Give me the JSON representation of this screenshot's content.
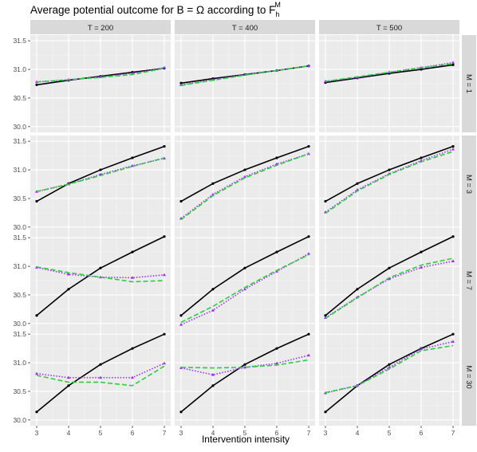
{
  "title": {
    "main": "Average potential outcome for B = Ω according to F",
    "sub": "h",
    "sup": "M"
  },
  "chart_data": {
    "type": "line",
    "xlabel": "Intervention intensity",
    "x": [
      3,
      4,
      5,
      6,
      7
    ],
    "xticks": [
      "3",
      "4",
      "5",
      "6",
      "7"
    ],
    "ylim": [
      29.9,
      31.6
    ],
    "yticks": [
      30.0,
      30.5,
      31.0,
      31.5
    ],
    "ytick_labels": [
      "30.0",
      "30.5",
      "31.0",
      "31.5"
    ],
    "grid": true,
    "legend": "none",
    "columns": [
      "T = 200",
      "T = 400",
      "T = 500"
    ],
    "rows": [
      "M = 1",
      "M = 3",
      "M = 7",
      "M = 30"
    ],
    "series_styles": [
      {
        "color": "#000000",
        "dash": "solid",
        "marker": "circle"
      },
      {
        "color": "#9b30ff",
        "dash": "dotted",
        "marker": "triangle"
      },
      {
        "color": "#2ecc40",
        "dash": "dashed",
        "marker": "none"
      }
    ],
    "panels": [
      [
        [
          [
            30.73,
            30.81,
            30.88,
            30.95,
            31.02
          ],
          [
            30.78,
            30.82,
            30.87,
            30.93,
            31.03
          ],
          [
            30.78,
            30.82,
            30.86,
            30.91,
            31.02
          ]
        ],
        [
          [
            30.76,
            30.84,
            30.91,
            30.98,
            31.06
          ],
          [
            30.73,
            30.82,
            30.91,
            30.98,
            31.06
          ],
          [
            30.72,
            30.81,
            30.9,
            30.98,
            31.06
          ]
        ],
        [
          [
            30.77,
            30.85,
            30.93,
            31.0,
            31.08
          ],
          [
            30.79,
            30.86,
            30.95,
            31.03,
            31.12
          ],
          [
            30.79,
            30.87,
            30.95,
            31.03,
            31.1
          ]
        ]
      ],
      [
        [
          [
            30.45,
            30.76,
            31.0,
            31.21,
            31.41
          ],
          [
            30.62,
            30.75,
            30.92,
            31.07,
            31.2
          ],
          [
            30.62,
            30.75,
            30.9,
            31.06,
            31.21
          ]
        ],
        [
          [
            30.45,
            30.76,
            31.0,
            31.21,
            31.41
          ],
          [
            30.15,
            30.57,
            30.88,
            31.1,
            31.28
          ],
          [
            30.13,
            30.55,
            30.86,
            31.08,
            31.28
          ]
        ],
        [
          [
            30.45,
            30.76,
            31.0,
            31.21,
            31.41
          ],
          [
            30.26,
            30.65,
            30.93,
            31.16,
            31.36
          ],
          [
            30.24,
            30.63,
            30.92,
            31.14,
            31.32
          ]
        ]
      ],
      [
        [
          [
            30.14,
            30.6,
            30.97,
            31.25,
            31.52
          ],
          [
            30.98,
            30.86,
            30.81,
            30.8,
            30.85
          ],
          [
            30.99,
            30.89,
            30.81,
            30.73,
            30.75
          ]
        ],
        [
          [
            30.14,
            30.6,
            30.97,
            31.25,
            31.52
          ],
          [
            29.98,
            30.23,
            30.6,
            30.91,
            31.22
          ],
          [
            30.02,
            30.3,
            30.63,
            30.93,
            31.2
          ]
        ],
        [
          [
            30.14,
            30.6,
            30.97,
            31.25,
            31.52
          ],
          [
            30.1,
            30.46,
            30.78,
            30.98,
            31.09
          ],
          [
            30.09,
            30.45,
            30.8,
            31.02,
            31.14
          ]
        ]
      ],
      [
        [
          [
            30.14,
            30.6,
            30.97,
            31.25,
            31.5
          ],
          [
            30.81,
            30.74,
            30.74,
            30.74,
            30.99
          ],
          [
            30.78,
            30.66,
            30.66,
            30.6,
            30.94
          ]
        ],
        [
          [
            30.14,
            30.6,
            30.97,
            31.25,
            31.5
          ],
          [
            30.91,
            30.79,
            30.92,
            30.99,
            31.13
          ],
          [
            30.92,
            30.91,
            30.92,
            30.96,
            31.05
          ]
        ],
        [
          [
            30.14,
            30.6,
            30.97,
            31.25,
            31.5
          ],
          [
            30.47,
            30.6,
            30.92,
            31.24,
            31.37
          ],
          [
            30.48,
            30.6,
            30.89,
            31.21,
            31.3
          ]
        ]
      ]
    ]
  }
}
